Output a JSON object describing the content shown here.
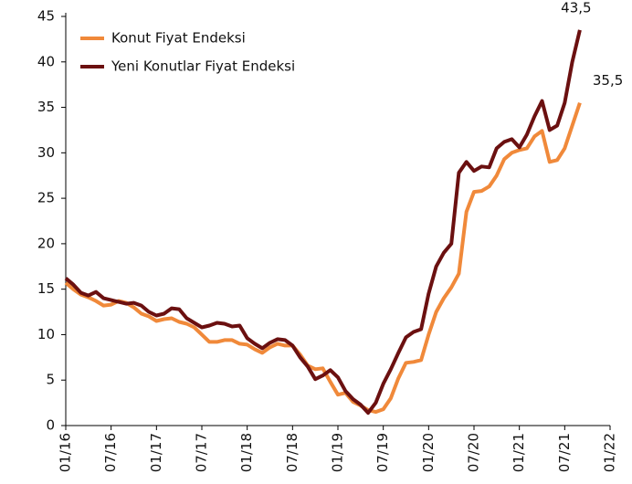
{
  "chart_data": {
    "type": "line",
    "categories": [
      "01/16",
      null,
      null,
      null,
      null,
      null,
      "07/16",
      null,
      null,
      null,
      null,
      null,
      "01/17",
      null,
      null,
      null,
      null,
      null,
      "07/17",
      null,
      null,
      null,
      null,
      null,
      "01/18",
      null,
      null,
      null,
      null,
      null,
      "07/18",
      null,
      null,
      null,
      null,
      null,
      "01/19",
      null,
      null,
      null,
      null,
      null,
      "07/19",
      null,
      null,
      null,
      null,
      null,
      "01/20",
      null,
      null,
      null,
      null,
      null,
      "07/20",
      null,
      null,
      null,
      null,
      null,
      "01/21",
      null,
      null,
      null,
      null,
      null,
      "07/21",
      null,
      null,
      null,
      null,
      null,
      "01/22"
    ],
    "series": [
      {
        "name": "Konut Fiyat Endeksi",
        "color": "#f0893a",
        "values": [
          15.7,
          15.0,
          14.4,
          14.1,
          13.7,
          13.2,
          13.3,
          13.7,
          13.5,
          13.0,
          12.3,
          12.0,
          11.5,
          11.7,
          11.8,
          11.4,
          11.2,
          10.8,
          10.0,
          9.2,
          9.2,
          9.4,
          9.4,
          9.0,
          8.9,
          8.4,
          8.0,
          8.6,
          9.0,
          8.8,
          8.8,
          7.8,
          6.6,
          6.2,
          6.3,
          4.8,
          3.4,
          3.6,
          2.6,
          2.2,
          1.7,
          1.5,
          1.8,
          3.0,
          5.2,
          6.9,
          7.0,
          7.2,
          10.0,
          12.5,
          14.0,
          15.2,
          16.7,
          23.5,
          25.7,
          25.8,
          26.3,
          27.5,
          29.3,
          30.0,
          30.3,
          30.5,
          31.8,
          32.4,
          29.0,
          29.2,
          30.5,
          33.0,
          35.5,
          null,
          null,
          null,
          null
        ],
        "value_labels": [
          null,
          null,
          null,
          null,
          null,
          null,
          null,
          null,
          null,
          null,
          null,
          null,
          null,
          null,
          null,
          null,
          null,
          null,
          null,
          null,
          null,
          null,
          null,
          null,
          null,
          null,
          null,
          null,
          null,
          null,
          null,
          null,
          null,
          null,
          null,
          null,
          null,
          null,
          null,
          null,
          null,
          null,
          null,
          null,
          null,
          null,
          null,
          null,
          null,
          null,
          null,
          null,
          null,
          null,
          null,
          null,
          null,
          null,
          null,
          null,
          null,
          null,
          null,
          null,
          null,
          null,
          null,
          null,
          "35,5",
          null,
          null,
          null,
          null
        ]
      },
      {
        "name": "Yeni Konutlar Fiyat Endeksi",
        "color": "#6b1010",
        "values": [
          16.2,
          15.5,
          14.6,
          14.3,
          14.7,
          14.0,
          13.8,
          13.6,
          13.4,
          13.5,
          13.2,
          12.5,
          12.1,
          12.3,
          12.9,
          12.8,
          11.8,
          11.3,
          10.8,
          11.0,
          11.3,
          11.2,
          10.9,
          11.0,
          9.6,
          9.0,
          8.5,
          9.1,
          9.5,
          9.4,
          8.8,
          7.5,
          6.5,
          5.1,
          5.5,
          6.1,
          5.3,
          3.8,
          2.9,
          2.3,
          1.4,
          2.5,
          4.6,
          6.2,
          8.0,
          9.7,
          10.3,
          10.6,
          14.5,
          17.5,
          19.0,
          20.0,
          27.8,
          29.0,
          28.0,
          28.5,
          28.4,
          30.5,
          31.2,
          31.5,
          30.6,
          32.0,
          34.0,
          35.7,
          32.5,
          33.0,
          35.5,
          40.0,
          43.5,
          null,
          null,
          null,
          null
        ],
        "value_labels": [
          null,
          null,
          null,
          null,
          null,
          null,
          null,
          null,
          null,
          null,
          null,
          null,
          null,
          null,
          null,
          null,
          null,
          null,
          null,
          null,
          null,
          null,
          null,
          null,
          null,
          null,
          null,
          null,
          null,
          null,
          null,
          null,
          null,
          null,
          null,
          null,
          null,
          null,
          null,
          null,
          null,
          null,
          null,
          null,
          null,
          null,
          null,
          null,
          null,
          null,
          null,
          null,
          null,
          null,
          null,
          null,
          null,
          null,
          null,
          null,
          null,
          null,
          null,
          null,
          null,
          null,
          null,
          null,
          "43,5",
          null,
          null,
          null,
          null
        ]
      }
    ],
    "ylim": [
      0,
      45
    ],
    "yticks": [
      0,
      5,
      10,
      15,
      20,
      25,
      30,
      35,
      40,
      45
    ],
    "grid": false,
    "legend": "top-left"
  }
}
